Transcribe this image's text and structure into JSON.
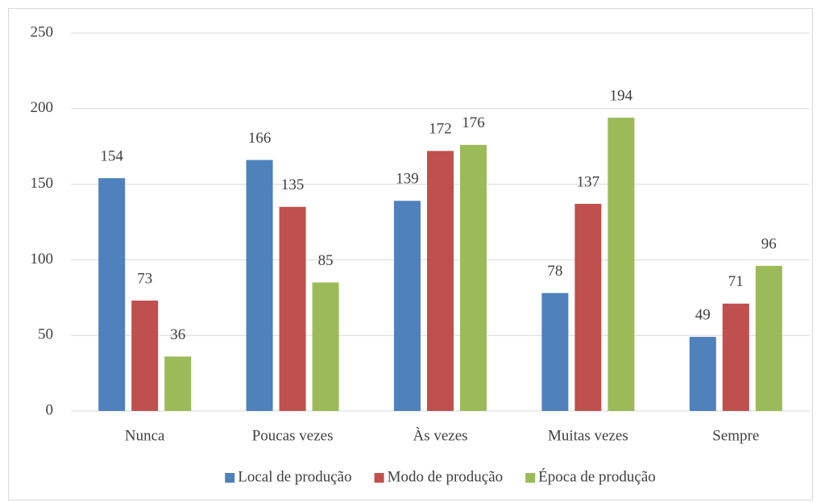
{
  "chart_data": {
    "type": "bar",
    "categories": [
      "Nunca",
      "Poucas vezes",
      "Às vezes",
      "Muitas vezes",
      "Sempre"
    ],
    "series": [
      {
        "name": "Local de produção",
        "color": "#4f81bd",
        "values": [
          154,
          166,
          139,
          78,
          49
        ]
      },
      {
        "name": "Modo de produção",
        "color": "#c0504d",
        "values": [
          73,
          135,
          172,
          137,
          71
        ]
      },
      {
        "name": "Época de produção",
        "color": "#9bbb59",
        "values": [
          36,
          85,
          176,
          194,
          96
        ]
      }
    ],
    "ylim": [
      0,
      250
    ],
    "yticks": [
      0,
      50,
      100,
      150,
      200,
      250
    ],
    "grid": true,
    "legend": "bottom"
  }
}
